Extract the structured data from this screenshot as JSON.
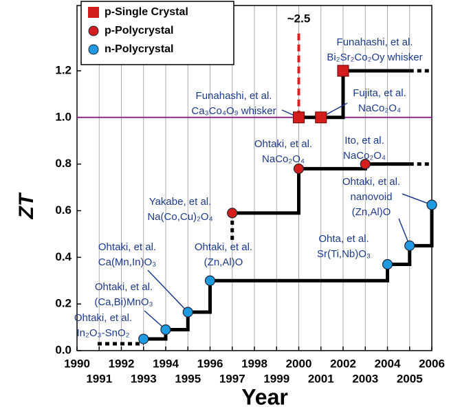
{
  "chart_data": {
    "type": "scatter",
    "xlabel": "Year",
    "ylabel": "ZT",
    "xlim": [
      1990,
      2006
    ],
    "ylim": [
      0,
      1.48
    ],
    "xticks": [
      1990,
      1991,
      1992,
      1993,
      1994,
      1995,
      1996,
      1997,
      1998,
      1999,
      2000,
      2001,
      2002,
      2003,
      2004,
      2005,
      2006
    ],
    "yticks": [
      {
        "value": 0,
        "label": "0.0"
      },
      {
        "value": 0.2,
        "label": "0.2"
      },
      {
        "value": 0.4,
        "label": "0.4"
      },
      {
        "value": 0.6,
        "label": "0.6"
      },
      {
        "value": 0.8,
        "label": "0.8"
      },
      {
        "value": 1.0,
        "label": "1.0"
      },
      {
        "value": 1.2,
        "label": "1.2"
      }
    ],
    "grid": true,
    "reference_line": 1.0,
    "reference_color": "#8b2a8b",
    "legend": "upper left",
    "series": [
      {
        "name": "p-Single Crystal",
        "marker": "square",
        "color": "#d41e1e",
        "x": [
          2000,
          2001,
          2002
        ],
        "values": [
          1.0,
          1.0,
          1.2
        ]
      },
      {
        "name": "p-Polycrystal",
        "marker": "circle",
        "color": "#d41e1e",
        "x": [
          1997,
          2000,
          2003
        ],
        "values": [
          0.59,
          0.78,
          0.8
        ]
      },
      {
        "name": "n-Polycrystal",
        "marker": "circle",
        "color": "#1e9be0",
        "x": [
          1993,
          1994,
          1995,
          1996,
          2004,
          2005,
          2006
        ],
        "values": [
          0.05,
          0.09,
          0.165,
          0.3,
          0.37,
          0.45,
          0.625
        ]
      }
    ],
    "peak_label": "~2.5",
    "annotations": [
      {
        "lines": [
          "Ohtaki, et al.",
          "In₂O₃-SnO₂"
        ]
      },
      {
        "lines": [
          "Ohtaki, et al.",
          "(Ca,Bi)MnO₃"
        ]
      },
      {
        "lines": [
          "Ohtaki, et al.",
          "Ca(Mn,In)O₃"
        ]
      },
      {
        "lines": [
          "Ohtaki, et al.",
          "(Zn,Al)O"
        ]
      },
      {
        "lines": [
          "Yakabe, et al.",
          "Na(Co,Cu)₂O₄"
        ]
      },
      {
        "lines": [
          "Ohtaki, et al.",
          "NaCo₂O₄"
        ]
      },
      {
        "lines": [
          "Ito, et al.",
          "NaCo₂O₄"
        ]
      },
      {
        "lines": [
          "Funahashi, et al.",
          "Ca₃Co₄O₉ whisker"
        ]
      },
      {
        "lines": [
          "Fujita, et al.",
          "NaCo₂O₄"
        ]
      },
      {
        "lines": [
          "Funahashi, et al.",
          "Bi₂Sr₂Co₂Oy whisker"
        ]
      },
      {
        "lines": [
          "Ohta, et al.",
          "Sr(Ti,Nb)O₃"
        ]
      },
      {
        "lines": [
          "Ohtaki, et al.",
          "nanovoid",
          "(Zn,Al)O"
        ]
      }
    ]
  }
}
